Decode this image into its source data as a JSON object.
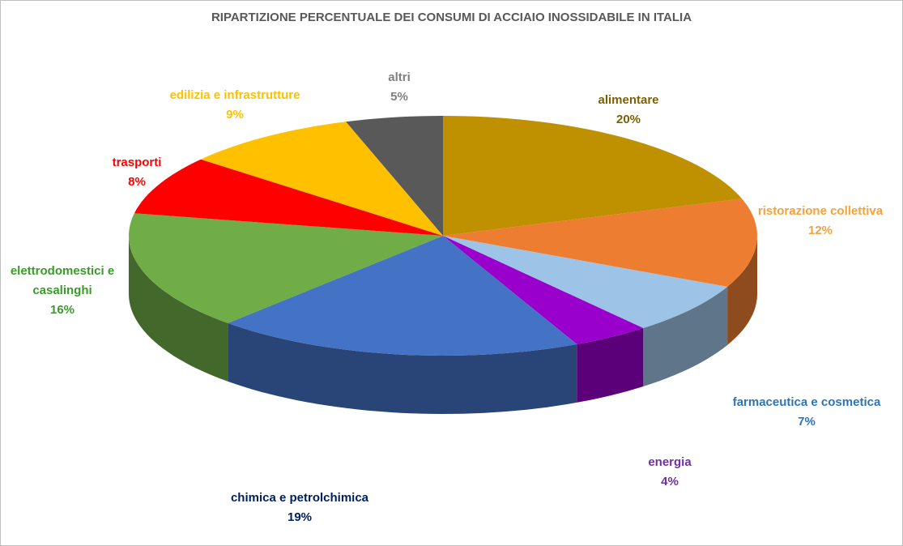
{
  "chart_data": {
    "type": "pie3d",
    "title": "RIPARTIZIONE PERCENTUALE DEI CONSUMI DI ACCIAIO INOSSIDABILE IN ITALIA",
    "categories": [
      "alimentare",
      "ristorazione collettiva",
      "farmaceutica e cosmetica",
      "energia",
      "chimica e petrolchimica",
      "elettrodomestici e casalinghi",
      "trasporti",
      "edilizia e infrastrutture",
      "altri"
    ],
    "values": [
      20,
      12,
      7,
      4,
      19,
      16,
      8,
      9,
      5
    ],
    "value_labels": [
      "20%",
      "12%",
      "7%",
      "4%",
      "19%",
      "16%",
      "8%",
      "9%",
      "5%"
    ],
    "colors": [
      "#bf9000",
      "#ed7d31",
      "#9dc3e6",
      "#9900cc",
      "#4472c4",
      "#70ad47",
      "#ff0000",
      "#ffc000",
      "#595959"
    ],
    "label_colors": [
      "#7f6000",
      "#f4a23a",
      "#2e75b6",
      "#7030a0",
      "#002060",
      "#3a9a2a",
      "#ff0000",
      "#ffc000",
      "#808080"
    ]
  }
}
